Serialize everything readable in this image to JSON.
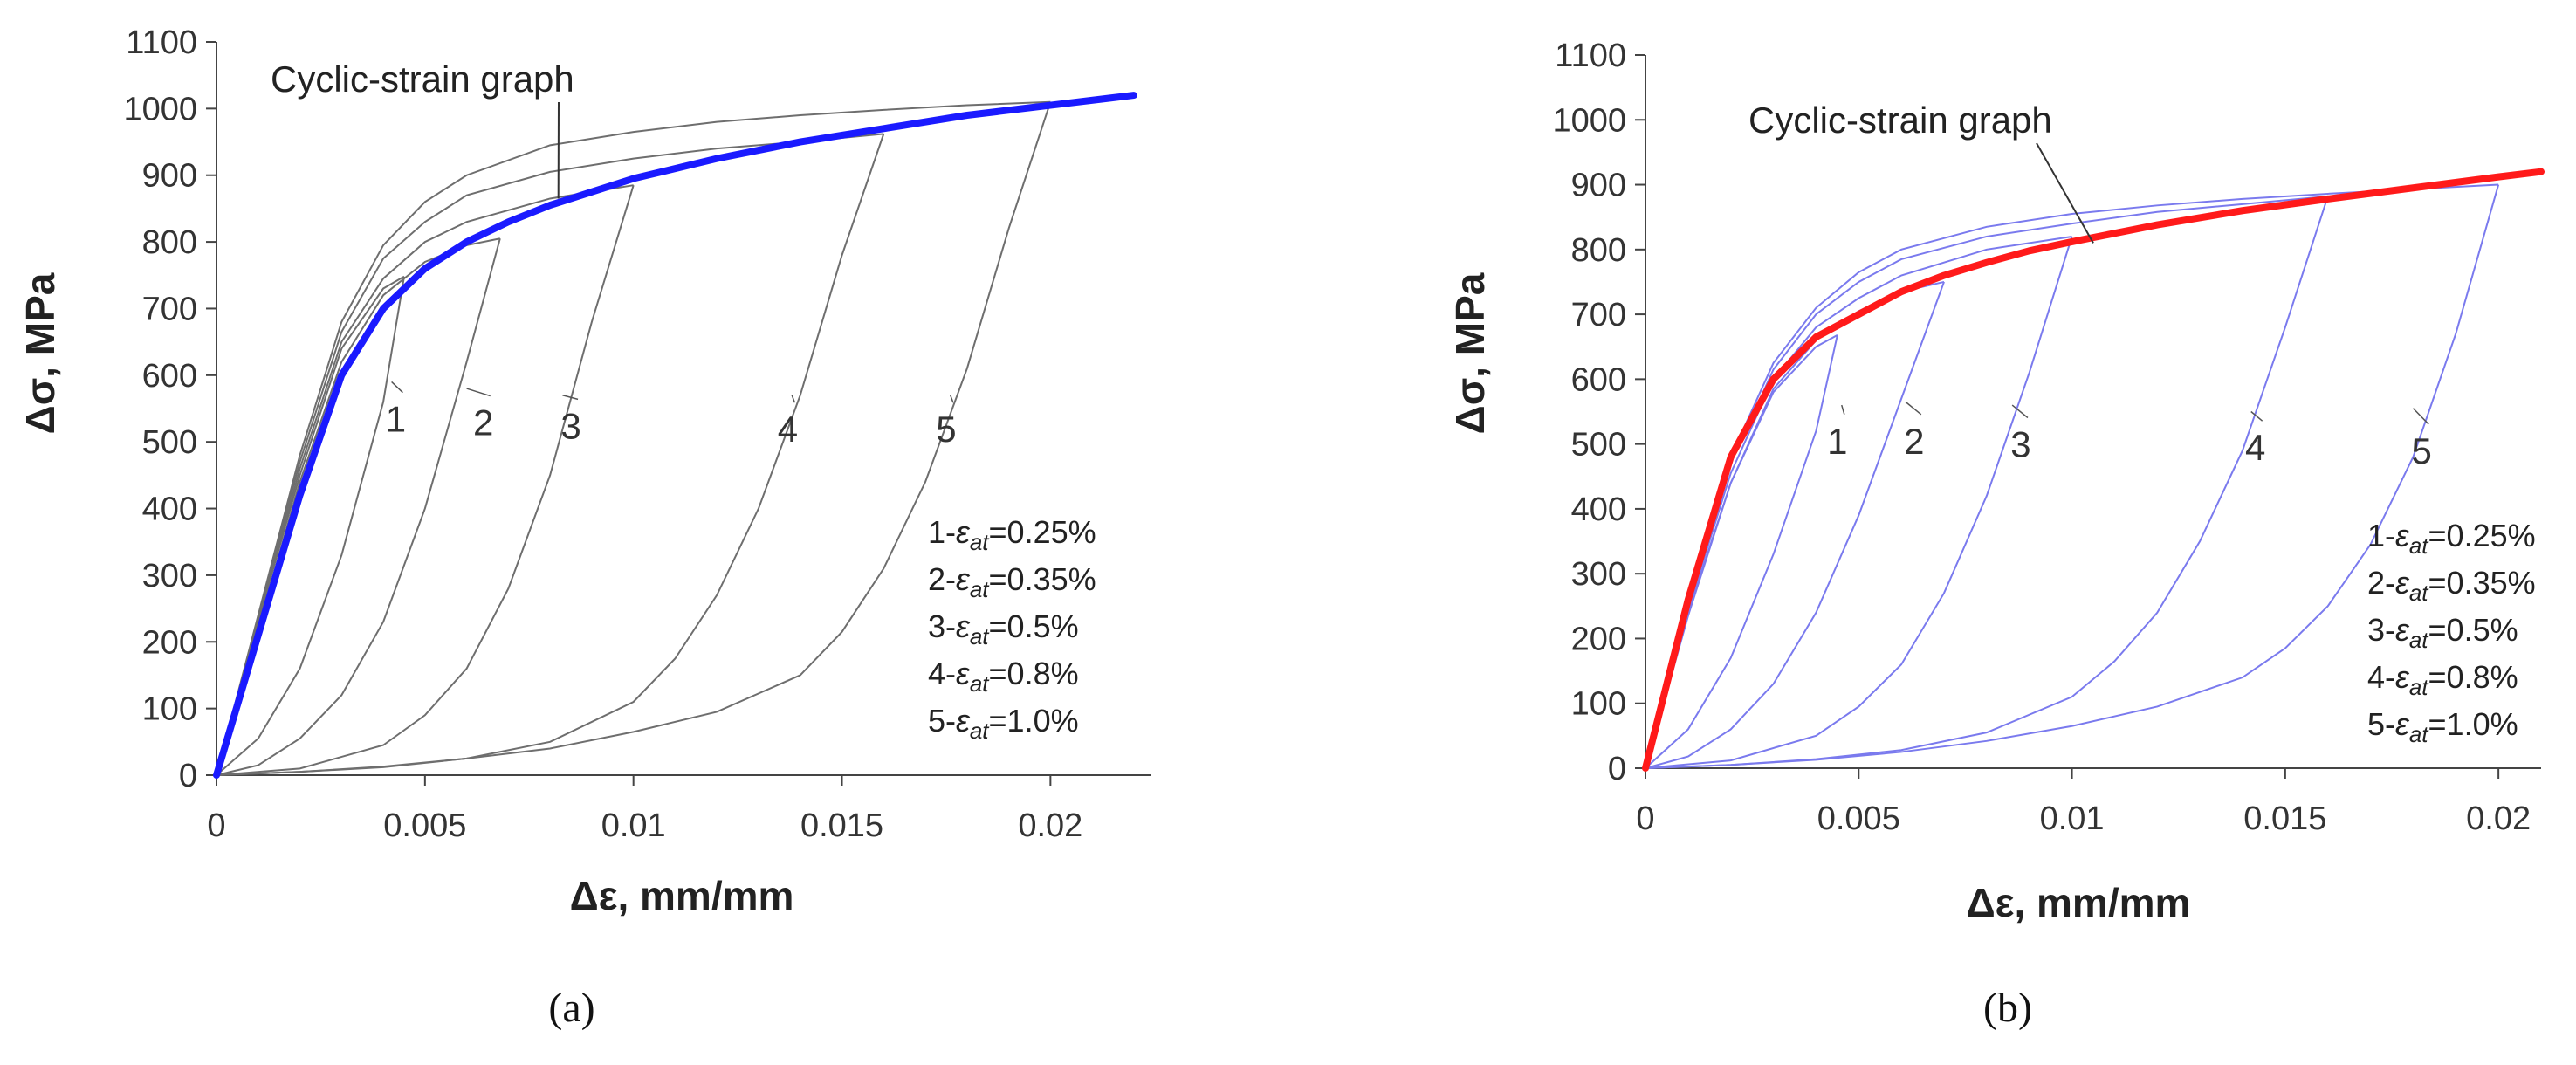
{
  "chart_data": [
    {
      "type": "line",
      "panel": "a",
      "caption": "(a)",
      "title": "",
      "xlabel": "Δε, mm/mm",
      "ylabel": "Δσ, MPa",
      "xlim": [
        0,
        0.0224
      ],
      "ylim": [
        0,
        1100
      ],
      "xticks": [
        0,
        0.005,
        0.01,
        0.015,
        0.02
      ],
      "xtick_labels": [
        "0",
        "0.005",
        "0.01",
        "0.015",
        "0.02"
      ],
      "yticks": [
        0,
        100,
        200,
        300,
        400,
        500,
        600,
        700,
        800,
        900,
        1000,
        1100
      ],
      "ytick_labels": [
        "0",
        "100",
        "200",
        "300",
        "400",
        "500",
        "600",
        "700",
        "800",
        "900",
        "1000",
        "1100"
      ],
      "main_color": "#1a1aff",
      "loop_color": "#6e6e6e",
      "annotation": "Cyclic-strain graph",
      "annotation_target": [
        0.0082,
        865
      ],
      "main_curve": {
        "name": "Cyclic-strain graph",
        "x": [
          0,
          0.001,
          0.002,
          0.003,
          0.004,
          0.005,
          0.006,
          0.007,
          0.008,
          0.009,
          0.01,
          0.012,
          0.014,
          0.016,
          0.018,
          0.02,
          0.022
        ],
        "y": [
          0,
          210,
          420,
          600,
          700,
          760,
          800,
          830,
          855,
          875,
          895,
          925,
          950,
          970,
          990,
          1005,
          1020
        ]
      },
      "loops": [
        {
          "label": "1",
          "label_pos": [
            0.0043,
            515
          ],
          "leader_to": [
            0.0042,
            590
          ],
          "load": {
            "x": [
              0,
              0.001,
              0.002,
              0.003,
              0.004,
              0.0045
            ],
            "y": [
              0,
              230,
              450,
              640,
              730,
              748
            ]
          },
          "unload": {
            "x": [
              0.0045,
              0.004,
              0.003,
              0.002,
              0.001,
              0
            ],
            "y": [
              748,
              560,
              330,
              160,
              55,
              0
            ]
          }
        },
        {
          "label": "2",
          "label_pos": [
            0.0064,
            510
          ],
          "leader_to": [
            0.006,
            580
          ],
          "load": {
            "x": [
              0,
              0.001,
              0.002,
              0.003,
              0.004,
              0.005,
              0.006,
              0.0068
            ],
            "y": [
              0,
              220,
              440,
              620,
              720,
              770,
              795,
              805
            ]
          },
          "unload": {
            "x": [
              0.0068,
              0.006,
              0.005,
              0.004,
              0.003,
              0.002,
              0.001,
              0
            ],
            "y": [
              805,
              620,
              400,
              230,
              120,
              55,
              15,
              0
            ]
          }
        },
        {
          "label": "3",
          "label_pos": [
            0.0085,
            505
          ],
          "leader_to": [
            0.0083,
            570
          ],
          "load": {
            "x": [
              0,
              0.001,
              0.002,
              0.003,
              0.004,
              0.005,
              0.006,
              0.008,
              0.01
            ],
            "y": [
              0,
              230,
              460,
              650,
              745,
              800,
              830,
              865,
              885
            ]
          },
          "unload": {
            "x": [
              0.01,
              0.009,
              0.008,
              0.007,
              0.006,
              0.005,
              0.004,
              0.002,
              0
            ],
            "y": [
              885,
              680,
              450,
              280,
              160,
              90,
              45,
              10,
              0
            ]
          }
        },
        {
          "label": "4",
          "label_pos": [
            0.0137,
            500
          ],
          "leader_to": [
            0.0138,
            570
          ],
          "load": {
            "x": [
              0,
              0.001,
              0.002,
              0.003,
              0.004,
              0.005,
              0.006,
              0.008,
              0.01,
              0.012,
              0.014,
              0.016
            ],
            "y": [
              0,
              235,
              470,
              665,
              775,
              830,
              870,
              905,
              925,
              940,
              950,
              962
            ]
          },
          "unload": {
            "x": [
              0.016,
              0.015,
              0.014,
              0.013,
              0.012,
              0.011,
              0.01,
              0.008,
              0.006,
              0.004,
              0.002,
              0
            ],
            "y": [
              962,
              780,
              570,
              400,
              270,
              175,
              110,
              50,
              25,
              12,
              5,
              0
            ]
          }
        },
        {
          "label": "5",
          "label_pos": [
            0.0175,
            500
          ],
          "leader_to": [
            0.0176,
            570
          ],
          "load": {
            "x": [
              0,
              0.001,
              0.002,
              0.003,
              0.004,
              0.005,
              0.006,
              0.008,
              0.01,
              0.012,
              0.014,
              0.016,
              0.018,
              0.02
            ],
            "y": [
              0,
              240,
              480,
              680,
              795,
              860,
              900,
              945,
              965,
              980,
              990,
              998,
              1005,
              1010
            ]
          },
          "unload": {
            "x": [
              0.02,
              0.019,
              0.018,
              0.017,
              0.016,
              0.015,
              0.014,
              0.012,
              0.01,
              0.008,
              0.006,
              0.004,
              0.002,
              0
            ],
            "y": [
              1010,
              820,
              610,
              440,
              310,
              215,
              150,
              95,
              65,
              40,
              25,
              13,
              5,
              0
            ]
          }
        }
      ],
      "legend": [
        "1-εat=0.25%",
        "2-εat=0.35%",
        "3-εat=0.5%",
        "4-εat=0.8%",
        "5-εat=1.0%"
      ]
    },
    {
      "type": "line",
      "panel": "b",
      "caption": "(b)",
      "title": "",
      "xlabel": "Δε, mm/mm",
      "ylabel": "Δσ, MPa",
      "xlim": [
        0,
        0.021
      ],
      "ylim": [
        0,
        1100
      ],
      "xticks": [
        0,
        0.005,
        0.01,
        0.015,
        0.02
      ],
      "xtick_labels": [
        "0",
        "0.005",
        "0.01",
        "0.015",
        "0.02"
      ],
      "yticks": [
        0,
        100,
        200,
        300,
        400,
        500,
        600,
        700,
        800,
        900,
        1000,
        1100
      ],
      "ytick_labels": [
        "0",
        "100",
        "200",
        "300",
        "400",
        "500",
        "600",
        "700",
        "800",
        "900",
        "1000",
        "1100"
      ],
      "main_color": "#ff1a1a",
      "loop_color": "#7a7aee",
      "annotation": "Cyclic-strain graph",
      "annotation_target": [
        0.0105,
        810
      ],
      "main_curve": {
        "name": "Cyclic-strain graph",
        "x": [
          0,
          0.001,
          0.002,
          0.003,
          0.004,
          0.005,
          0.006,
          0.007,
          0.008,
          0.009,
          0.01,
          0.012,
          0.014,
          0.016,
          0.018,
          0.02,
          0.021
        ],
        "y": [
          0,
          260,
          480,
          600,
          665,
          700,
          735,
          760,
          780,
          798,
          812,
          838,
          860,
          878,
          895,
          912,
          920
        ]
      },
      "loops": [
        {
          "label": "1",
          "label_pos": [
            0.0045,
            485
          ],
          "leader_to": [
            0.0046,
            560
          ],
          "load": {
            "x": [
              0,
              0.001,
              0.002,
              0.003,
              0.004,
              0.0045
            ],
            "y": [
              0,
              240,
              440,
              580,
              650,
              668
            ]
          },
          "unload": {
            "x": [
              0.0045,
              0.004,
              0.003,
              0.002,
              0.001,
              0
            ],
            "y": [
              668,
              520,
              330,
              170,
              60,
              0
            ]
          }
        },
        {
          "label": "2",
          "label_pos": [
            0.0063,
            485
          ],
          "leader_to": [
            0.0061,
            565
          ],
          "load": {
            "x": [
              0,
              0.001,
              0.002,
              0.003,
              0.004,
              0.005,
              0.006,
              0.007
            ],
            "y": [
              0,
              235,
              440,
              585,
              660,
              705,
              735,
              750
            ]
          },
          "unload": {
            "x": [
              0.007,
              0.006,
              0.005,
              0.004,
              0.003,
              0.002,
              0.001,
              0
            ],
            "y": [
              750,
              570,
              390,
              240,
              130,
              60,
              18,
              0
            ]
          }
        },
        {
          "label": "3",
          "label_pos": [
            0.0088,
            480
          ],
          "leader_to": [
            0.0086,
            560
          ],
          "load": {
            "x": [
              0,
              0.001,
              0.002,
              0.003,
              0.004,
              0.005,
              0.006,
              0.008,
              0.01
            ],
            "y": [
              0,
              245,
              455,
              600,
              680,
              725,
              760,
              800,
              820
            ]
          },
          "unload": {
            "x": [
              0.01,
              0.009,
              0.008,
              0.007,
              0.006,
              0.005,
              0.004,
              0.002,
              0
            ],
            "y": [
              820,
              610,
              420,
              270,
              160,
              95,
              50,
              12,
              0
            ]
          }
        },
        {
          "label": "4",
          "label_pos": [
            0.0143,
            475
          ],
          "leader_to": [
            0.0142,
            550
          ],
          "load": {
            "x": [
              0,
              0.001,
              0.002,
              0.003,
              0.004,
              0.005,
              0.006,
              0.008,
              0.01,
              0.012,
              0.014,
              0.016
            ],
            "y": [
              0,
              250,
              470,
              615,
              700,
              750,
              785,
              820,
              840,
              858,
              870,
              882
            ]
          },
          "unload": {
            "x": [
              0.016,
              0.015,
              0.014,
              0.013,
              0.012,
              0.011,
              0.01,
              0.008,
              0.006,
              0.004,
              0.002,
              0
            ],
            "y": [
              882,
              680,
              490,
              350,
              240,
              165,
              110,
              55,
              28,
              14,
              5,
              0
            ]
          }
        },
        {
          "label": "5",
          "label_pos": [
            0.0182,
            470
          ],
          "leader_to": [
            0.018,
            555
          ],
          "load": {
            "x": [
              0,
              0.001,
              0.002,
              0.003,
              0.004,
              0.005,
              0.006,
              0.008,
              0.01,
              0.012,
              0.014,
              0.016,
              0.018,
              0.02
            ],
            "y": [
              0,
              255,
              480,
              625,
              710,
              765,
              800,
              835,
              855,
              868,
              878,
              886,
              893,
              900
            ]
          },
          "unload": {
            "x": [
              0.02,
              0.019,
              0.018,
              0.017,
              0.016,
              0.015,
              0.014,
              0.012,
              0.01,
              0.008,
              0.006,
              0.004,
              0.002,
              0
            ],
            "y": [
              900,
              670,
              480,
              345,
              250,
              185,
              140,
              95,
              65,
              42,
              25,
              13,
              5,
              0
            ]
          }
        }
      ],
      "legend": [
        "1-εat=0.25%",
        "2-εat=0.35%",
        "3-εat=0.5%",
        "4-εat=0.8%",
        "5-εat=1.0%"
      ]
    }
  ]
}
